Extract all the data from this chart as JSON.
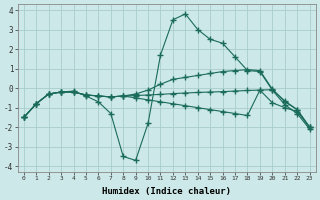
{
  "xlabel": "Humidex (Indice chaleur)",
  "bg_color": "#cce8e8",
  "grid_color": "#aacccc",
  "line_color": "#1a6b5a",
  "ylim": [
    -4.3,
    4.3
  ],
  "xlim": [
    -0.5,
    23.5
  ],
  "xticks": [
    0,
    1,
    2,
    3,
    4,
    5,
    6,
    7,
    8,
    9,
    10,
    11,
    12,
    13,
    14,
    15,
    16,
    17,
    18,
    19,
    20,
    21,
    22,
    23
  ],
  "yticks": [
    -4,
    -3,
    -2,
    -1,
    0,
    1,
    2,
    3,
    4
  ],
  "lines": [
    {
      "x": [
        0,
        1,
        2,
        3,
        4,
        5,
        6,
        7,
        8,
        9,
        10,
        11,
        12,
        13,
        14,
        15,
        16,
        17,
        18,
        19,
        20,
        21,
        22,
        23
      ],
      "y": [
        -1.5,
        -0.8,
        -0.3,
        -0.2,
        -0.15,
        -0.4,
        -0.7,
        -1.3,
        -3.5,
        -3.7,
        -1.8,
        1.7,
        3.5,
        3.8,
        3.0,
        2.5,
        2.3,
        1.6,
        0.9,
        0.85,
        -0.1,
        -0.85,
        -1.3,
        -2.1
      ]
    },
    {
      "x": [
        0,
        1,
        2,
        3,
        4,
        5,
        6,
        7,
        8,
        9,
        10,
        11,
        12,
        13,
        14,
        15,
        16,
        17,
        18,
        19,
        20,
        21,
        22,
        23
      ],
      "y": [
        -1.5,
        -0.8,
        -0.3,
        -0.2,
        -0.2,
        -0.35,
        -0.4,
        -0.45,
        -0.4,
        -0.3,
        -0.1,
        0.2,
        0.45,
        0.55,
        0.65,
        0.75,
        0.85,
        0.9,
        0.95,
        0.9,
        -0.05,
        -0.7,
        -1.1,
        -2.0
      ]
    },
    {
      "x": [
        0,
        1,
        2,
        3,
        4,
        5,
        6,
        7,
        8,
        9,
        10,
        11,
        12,
        13,
        14,
        15,
        16,
        17,
        18,
        19,
        20,
        21,
        22,
        23
      ],
      "y": [
        -1.5,
        -0.8,
        -0.3,
        -0.2,
        -0.2,
        -0.35,
        -0.4,
        -0.45,
        -0.4,
        -0.38,
        -0.35,
        -0.32,
        -0.28,
        -0.25,
        -0.22,
        -0.2,
        -0.18,
        -0.15,
        -0.12,
        -0.1,
        -0.08,
        -0.65,
        -1.1,
        -2.0
      ]
    },
    {
      "x": [
        0,
        1,
        2,
        3,
        4,
        5,
        6,
        7,
        8,
        9,
        10,
        11,
        12,
        13,
        14,
        15,
        16,
        17,
        18,
        19,
        20,
        21,
        22,
        23
      ],
      "y": [
        -1.5,
        -0.8,
        -0.3,
        -0.2,
        -0.2,
        -0.35,
        -0.4,
        -0.45,
        -0.4,
        -0.5,
        -0.6,
        -0.7,
        -0.8,
        -0.9,
        -1.0,
        -1.1,
        -1.2,
        -1.3,
        -1.4,
        -0.1,
        -0.75,
        -1.0,
        -1.2,
        -2.0
      ]
    }
  ]
}
